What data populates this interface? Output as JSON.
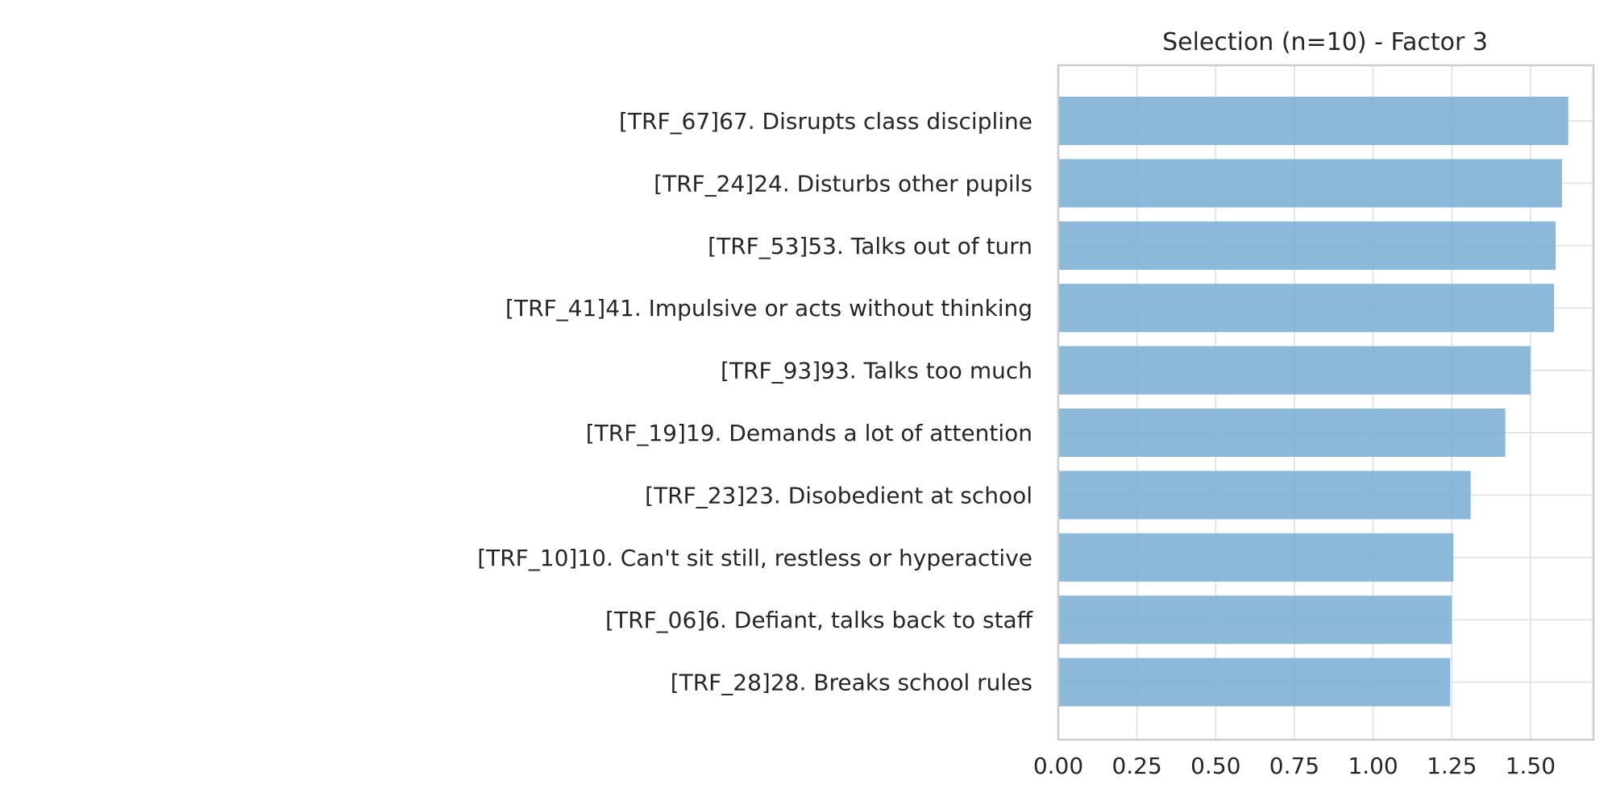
{
  "chart_data": {
    "type": "bar",
    "orientation": "horizontal",
    "title": "Selection (n=10) - Factor 3",
    "xlabel": "",
    "ylabel": "",
    "categories": [
      "[TRF_67]67. Disrupts class discipline",
      "[TRF_24]24. Disturbs other pupils",
      "[TRF_53]53. Talks out of turn",
      "[TRF_41]41. Impulsive or acts without thinking",
      "[TRF_93]93. Talks too much",
      "[TRF_19]19. Demands a lot of attention",
      "[TRF_23]23. Disobedient at school",
      "[TRF_10]10. Can't sit still, restless or hyperactive",
      "[TRF_06]6. Defiant, talks back to staff",
      "[TRF_28]28. Breaks school rules"
    ],
    "values": [
      1.62,
      1.6,
      1.58,
      1.575,
      1.5,
      1.42,
      1.31,
      1.255,
      1.25,
      1.245
    ],
    "xlim": [
      0,
      1.7
    ],
    "xticks": [
      "0.00",
      "0.25",
      "0.50",
      "0.75",
      "1.00",
      "1.25",
      "1.50"
    ],
    "bar_color": "#7fb1d6",
    "grid": true,
    "legend": "none"
  }
}
